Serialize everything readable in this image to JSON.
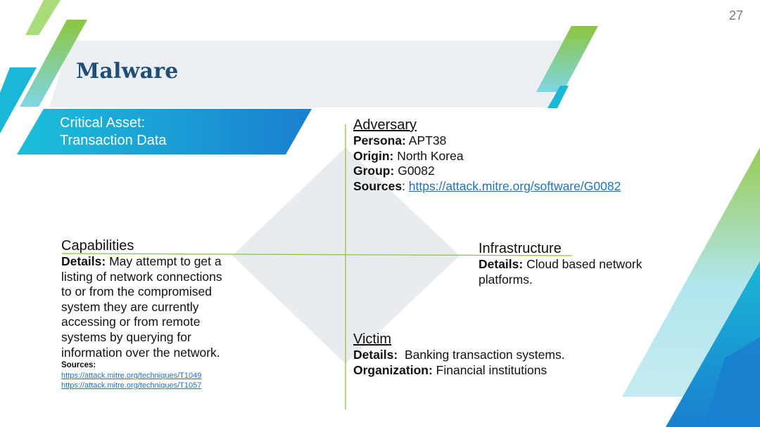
{
  "slide": {
    "page_number": "27",
    "title": "Malware",
    "critical_asset": {
      "line1": "Critical Asset:",
      "line2": "Transaction Data"
    }
  },
  "adversary": {
    "heading": "Adversary",
    "persona_label": "Persona:",
    "persona_value": "APT38",
    "origin_label": "Origin:",
    "origin_value": "North Korea",
    "group_label": "Group:",
    "group_value": "G0082",
    "sources_label": "Sources",
    "sources_url": "https://attack.mitre.org/software/G0082"
  },
  "capabilities": {
    "heading": "Capabilities",
    "details_label": "Details:",
    "details_lines": [
      "May attempt to get a",
      "listing of network connections",
      "to or from the compromised",
      "system they are currently",
      "accessing or from remote",
      "systems by querying for",
      "information over the network."
    ],
    "sources_label": "Sources:",
    "source_links": [
      "https://attack.mitre.org/techniques/T1049",
      "https://attack.mitre.org/techniques/T1057"
    ]
  },
  "infrastructure": {
    "heading": "Infrastructure",
    "details_label": "Details:",
    "details_line1": "Cloud based network",
    "details_line2": "platforms."
  },
  "victim": {
    "heading": "Victim",
    "details_label": "Details:",
    "details_value": "Banking transaction systems.",
    "organization_label": "Organization:",
    "organization_value": "Financial institutions"
  },
  "colors": {
    "title": "#1f4e79",
    "accent_green": "#8dc63f",
    "accent_cyan": "#1ab8d6",
    "accent_blue": "#1a7fd0",
    "diamond": "#e8ecef",
    "link": "#1a73c9"
  }
}
